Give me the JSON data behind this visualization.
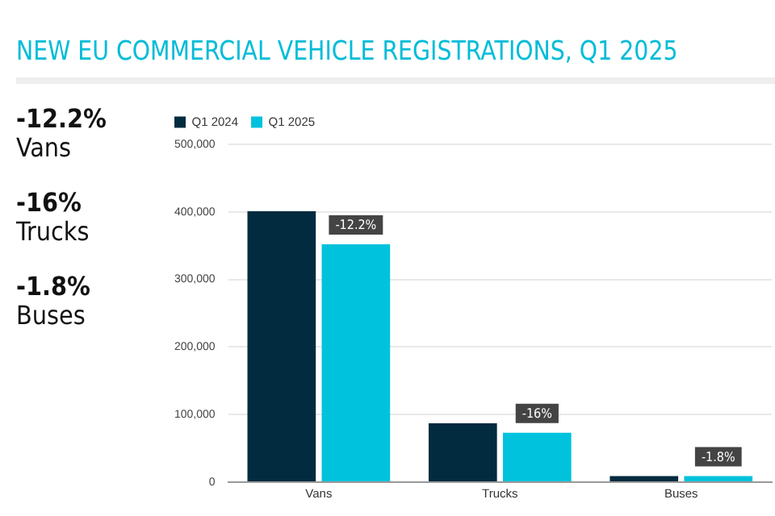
{
  "chart_data": {
    "type": "bar",
    "title": "NEW EU COMMERCIAL VEHICLE REGISTRATIONS, Q1 2025",
    "categories": [
      "Vans",
      "Trucks",
      "Buses"
    ],
    "series": [
      {
        "name": "Q1 2024",
        "color": "#022b3f",
        "values": [
          401000,
          87000,
          9000
        ]
      },
      {
        "name": "Q1 2025",
        "color": "#00c2dc",
        "values": [
          352000,
          73000,
          9000
        ]
      }
    ],
    "ylim": [
      0,
      500000
    ],
    "yticks": [
      0,
      {
        "value": 100000,
        "label": "100,000"
      },
      {
        "value": 200000,
        "label": "200,000"
      },
      {
        "value": 300000,
        "label": "300,000"
      },
      {
        "value": 400000,
        "label": "400,000"
      },
      {
        "value": 500000,
        "label": "500,000"
      }
    ],
    "grid": "y",
    "legend": "top left",
    "annotations": [
      "-12.2%",
      "Vans",
      "-16%",
      "Trucks",
      "-1.8%",
      "Buses",
      {
        "text": "-12.2%",
        "x": "Vans",
        "y": 352000
      },
      {
        "text": "-16%",
        "x": "Trucks",
        "y": 73000
      },
      {
        "text": "-1.8%",
        "x": "Buses",
        "y": 9000
      }
    ]
  }
}
